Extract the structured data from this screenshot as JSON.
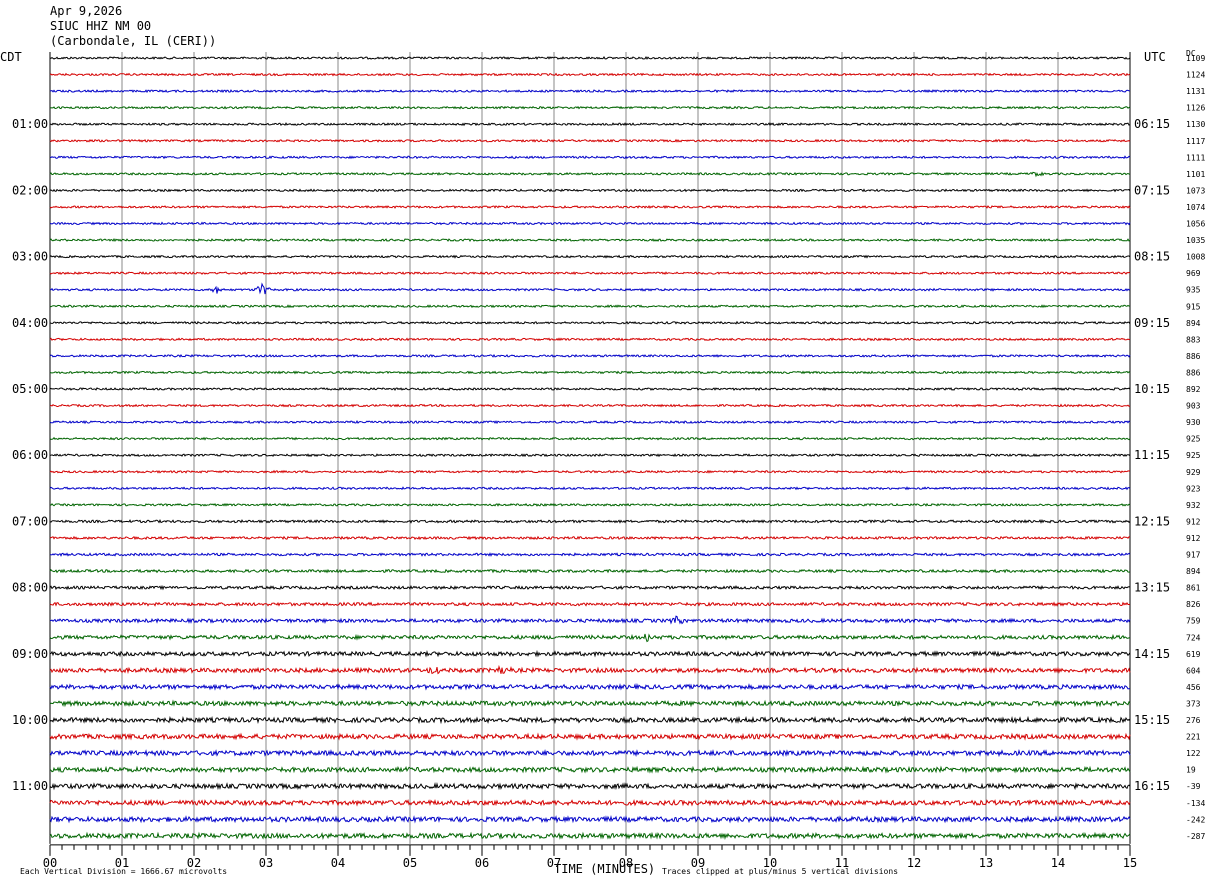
{
  "header": {
    "date": "Apr 9,2026",
    "station": "SIUC HHZ NM 00",
    "location": "(Carbondale, IL (CERI))"
  },
  "left_tz": "CDT",
  "right_tz": "UTC",
  "dc_label": "DC",
  "footer": {
    "scale": "Each Vertical Division = 1666.67 microvolts",
    "xlabel": "TIME (MINUTES)",
    "clip": "Traces clipped at plus/minus 5 vertical divisions"
  },
  "colors": {
    "trace_cycle": [
      "#000000",
      "#d40000",
      "#0000c8",
      "#006400"
    ],
    "grid": "#888888"
  },
  "chart_data": {
    "type": "line",
    "title": "",
    "xlabel": "TIME (MINUTES)",
    "xlim": [
      0,
      15
    ],
    "x_ticks": [
      "00",
      "01",
      "02",
      "03",
      "04",
      "05",
      "06",
      "07",
      "08",
      "09",
      "10",
      "11",
      "12",
      "13",
      "14",
      "15"
    ],
    "left_hour_labels": [
      "01:00",
      "02:00",
      "03:00",
      "04:00",
      "05:00",
      "06:00",
      "07:00",
      "08:00",
      "09:00",
      "10:00",
      "11:00"
    ],
    "right_hour_labels": [
      "06:15",
      "07:15",
      "08:15",
      "09:15",
      "10:15",
      "11:15",
      "12:15",
      "13:15",
      "14:15",
      "15:15",
      "16:15"
    ],
    "dc_offsets": [
      1109,
      1124,
      1131,
      1126,
      1130,
      1117,
      1111,
      1101,
      1073,
      1074,
      1056,
      1035,
      1008,
      969,
      935,
      915,
      894,
      883,
      886,
      886,
      892,
      903,
      930,
      925,
      925,
      929,
      923,
      932,
      912,
      912,
      917,
      894,
      861,
      826,
      759,
      724,
      619,
      604,
      456,
      373,
      276,
      221,
      122,
      19,
      -39,
      -134,
      -242,
      -287
    ],
    "trace_noise": [
      1,
      1,
      1,
      1,
      1,
      1,
      1,
      1,
      1,
      1,
      1,
      1,
      1,
      1,
      1,
      1,
      1,
      1,
      1,
      1,
      1,
      1,
      1,
      1,
      1,
      1,
      1,
      1,
      1.2,
      1.2,
      1.2,
      1.3,
      1.4,
      1.5,
      1.7,
      1.8,
      2,
      2.1,
      2.1,
      2.2,
      2.3,
      2.3,
      2.3,
      2.3,
      2.3,
      2.3,
      2.4,
      2.4
    ],
    "events": [
      {
        "trace": 14,
        "minute": 2.3,
        "amplitude": 4
      },
      {
        "trace": 14,
        "minute": 2.95,
        "amplitude": 7
      },
      {
        "trace": 7,
        "minute": 13.7,
        "amplitude": 2
      },
      {
        "trace": 37,
        "minute": 5.35,
        "amplitude": 5
      },
      {
        "trace": 37,
        "minute": 6.3,
        "amplitude": 5
      },
      {
        "trace": 34,
        "minute": 8.7,
        "amplitude": 4
      },
      {
        "trace": 35,
        "minute": 8.3,
        "amplitude": 4
      }
    ]
  }
}
